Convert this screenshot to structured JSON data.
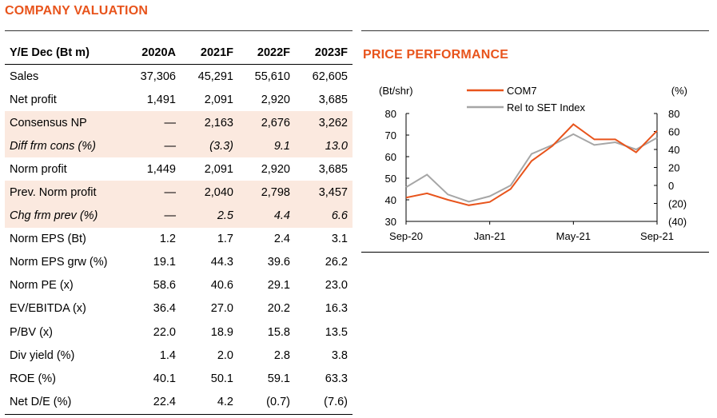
{
  "valuation": {
    "title": "COMPANY VALUATION",
    "header": [
      "Y/E Dec (Bt m)",
      "2020A",
      "2021F",
      "2022F",
      "2023F"
    ],
    "rows": [
      {
        "label": "Sales",
        "values": [
          "37,306",
          "45,291",
          "55,610",
          "62,605"
        ],
        "shaded": false,
        "italic": false
      },
      {
        "label": "Net profit",
        "values": [
          "1,491",
          "2,091",
          "2,920",
          "3,685"
        ],
        "shaded": false,
        "italic": false
      },
      {
        "label": "Consensus NP",
        "values": [
          "—",
          "2,163",
          "2,676",
          "3,262"
        ],
        "shaded": true,
        "italic": false
      },
      {
        "label": "Diff frm cons (%)",
        "values": [
          "—",
          "(3.3)",
          "9.1",
          "13.0"
        ],
        "shaded": true,
        "italic": true
      },
      {
        "label": "Norm profit",
        "values": [
          "1,449",
          "2,091",
          "2,920",
          "3,685"
        ],
        "shaded": false,
        "italic": false
      },
      {
        "label": "Prev. Norm profit",
        "values": [
          "—",
          "2,040",
          "2,798",
          "3,457"
        ],
        "shaded": true,
        "italic": false
      },
      {
        "label": "Chg frm prev (%)",
        "values": [
          "—",
          "2.5",
          "4.4",
          "6.6"
        ],
        "shaded": true,
        "italic": true
      },
      {
        "label": "Norm EPS (Bt)",
        "values": [
          "1.2",
          "1.7",
          "2.4",
          "3.1"
        ],
        "shaded": false,
        "italic": false
      },
      {
        "label": "Norm EPS grw (%)",
        "values": [
          "19.1",
          "44.3",
          "39.6",
          "26.2"
        ],
        "shaded": false,
        "italic": false
      },
      {
        "label": "Norm PE (x)",
        "values": [
          "58.6",
          "40.6",
          "29.1",
          "23.0"
        ],
        "shaded": false,
        "italic": false
      },
      {
        "label": "EV/EBITDA (x)",
        "values": [
          "36.4",
          "27.0",
          "20.2",
          "16.3"
        ],
        "shaded": false,
        "italic": false
      },
      {
        "label": "P/BV (x)",
        "values": [
          "22.0",
          "18.9",
          "15.8",
          "13.5"
        ],
        "shaded": false,
        "italic": false
      },
      {
        "label": "Div yield (%)",
        "values": [
          "1.4",
          "2.0",
          "2.8",
          "3.8"
        ],
        "shaded": false,
        "italic": false
      },
      {
        "label": "ROE (%)",
        "values": [
          "40.1",
          "50.1",
          "59.1",
          "63.3"
        ],
        "shaded": false,
        "italic": false
      },
      {
        "label": "Net D/E (%)",
        "values": [
          "22.4",
          "4.2",
          "(0.7)",
          "(7.6)"
        ],
        "shaded": false,
        "italic": false
      }
    ],
    "shade_color": "#FBE9DF"
  },
  "price": {
    "title": "PRICE PERFORMANCE"
  },
  "chart_data": {
    "type": "line",
    "title": "",
    "ylabel_left": "(Bt/shr)",
    "ylabel_right": "(%)",
    "x_ticks": [
      "Sep-20",
      "Jan-21",
      "May-21",
      "Sep-21"
    ],
    "y_left_ticks": [
      "30",
      "40",
      "50",
      "60",
      "70",
      "80"
    ],
    "y_left_range": [
      30,
      80
    ],
    "y_right_ticks": [
      "(40)",
      "(20)",
      "0",
      "20",
      "40",
      "60",
      "80"
    ],
    "y_right_range": [
      -40,
      80
    ],
    "legend": "top-center",
    "grid": false,
    "x": [
      "2020-09",
      "2020-10",
      "2020-11",
      "2020-12",
      "2021-01",
      "2021-02",
      "2021-03",
      "2021-04",
      "2021-05",
      "2021-06",
      "2021-07",
      "2021-08",
      "2021-09"
    ],
    "series": [
      {
        "name": "COM7",
        "axis": "left",
        "color": "#E8541C",
        "values": [
          41,
          43,
          40,
          37.5,
          39,
          45,
          58,
          65,
          75,
          68,
          68,
          62,
          72
        ]
      },
      {
        "name": "Rel to SET Index",
        "axis": "right",
        "color": "#A6A6A6",
        "values": [
          -2,
          12,
          -10,
          -18,
          -12,
          0,
          35,
          45,
          57,
          45,
          48,
          40,
          53
        ]
      }
    ]
  }
}
